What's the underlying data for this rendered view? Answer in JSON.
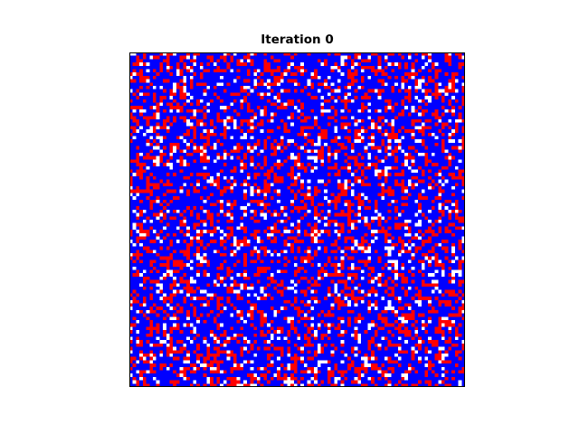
{
  "chart_data": {
    "type": "heatmap",
    "title": "Iteration 0",
    "grid": {
      "rows": 100,
      "cols": 100,
      "states": [
        {
          "value": 0,
          "color": "#ffffff",
          "fraction": 0.1
        },
        {
          "value": 1,
          "color": "#0000ff",
          "fraction": 0.62
        },
        {
          "value": 2,
          "color": "#ff0000",
          "fraction": 0.28
        }
      ]
    },
    "axes_visible": false,
    "grid_lines": false,
    "legend": "none"
  }
}
